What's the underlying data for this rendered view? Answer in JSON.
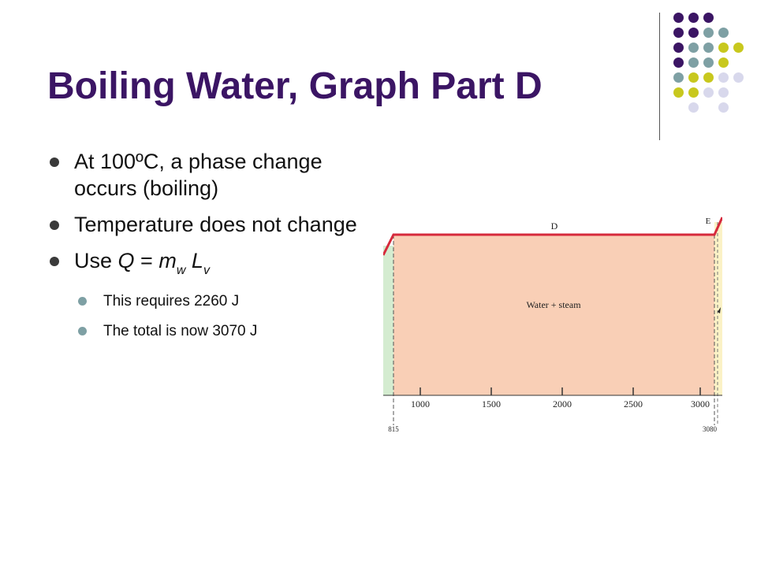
{
  "slide": {
    "title": "Boiling Water, Graph Part D",
    "bullets": [
      {
        "text": "At 100ºC, a phase change occurs (boiling)"
      },
      {
        "text": "Temperature does not change"
      },
      {
        "equation": {
          "prefix": "Use ",
          "Q": "Q",
          "eq": " = ",
          "m": "m",
          "m_sub": "w",
          "L": "L",
          "L_sub": "v"
        }
      }
    ],
    "sub_bullets": [
      "This requires 2260 J",
      "The total is now 3070 J"
    ]
  },
  "decor": {
    "dot_colors": [
      "#3b1564",
      "#7ea0a4",
      "#c8c81e",
      "#d8d8ec"
    ]
  },
  "graph": {
    "segment_labels": {
      "D": "D",
      "E": "E"
    },
    "region_label": "Water + steam",
    "x_ticks": [
      "1000",
      "1500",
      "2000",
      "2500",
      "3000"
    ],
    "boundary_labels": {
      "left": "815",
      "right": "3080"
    },
    "colors": {
      "line": "#d62a3c",
      "region_water_steam": "#f9cfb6",
      "region_left": "#d4ecd0",
      "region_right": "#fbf2c6"
    }
  }
}
